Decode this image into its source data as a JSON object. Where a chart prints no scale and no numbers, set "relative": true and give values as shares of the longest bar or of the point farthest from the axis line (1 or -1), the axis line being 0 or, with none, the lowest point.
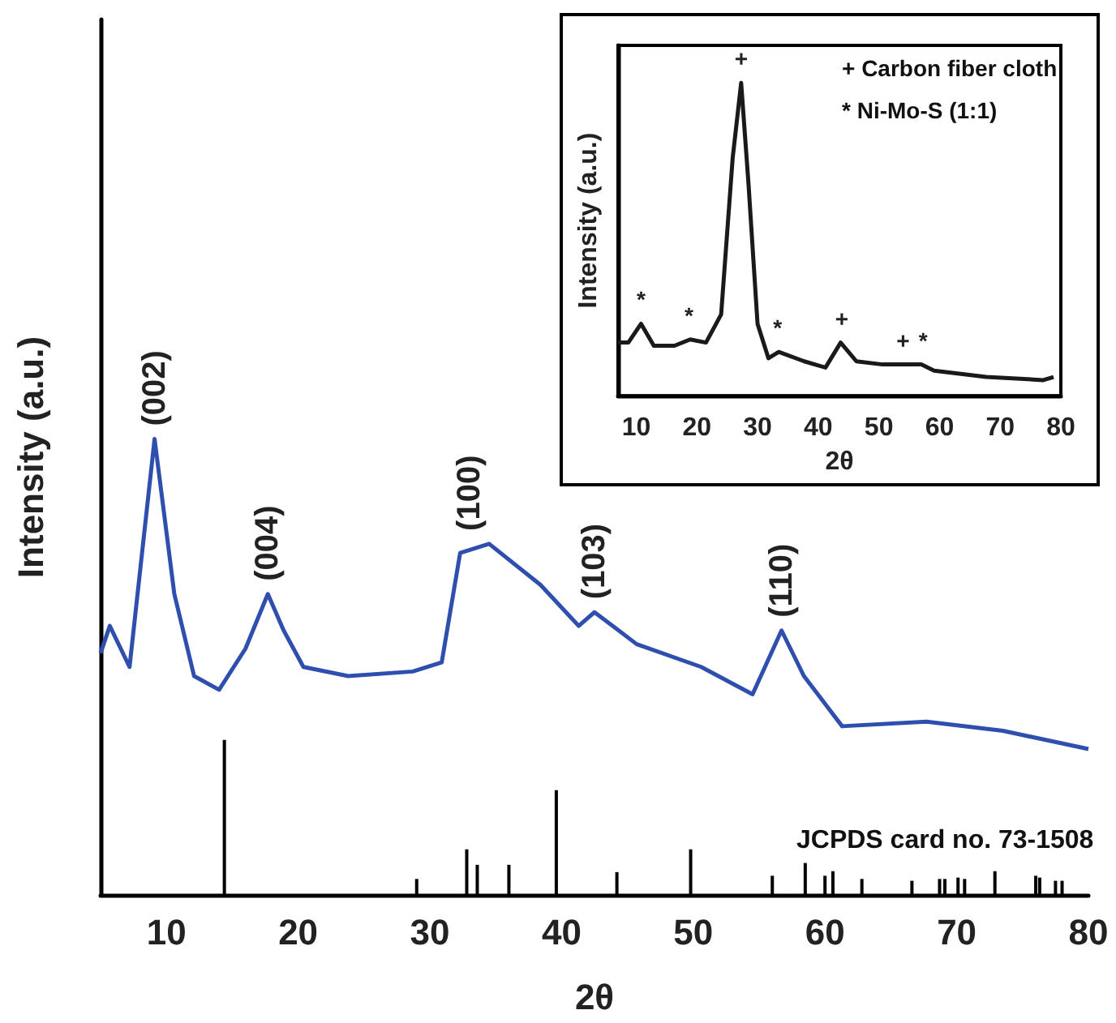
{
  "chart_data": [
    {
      "type": "line",
      "xlabel": "2θ",
      "ylabel": "Intensity (a.u.)",
      "relative": true,
      "xlim": [
        5,
        80
      ],
      "xticks": [
        10,
        20,
        30,
        40,
        50,
        60,
        70,
        80
      ],
      "series": [
        {
          "type": "line",
          "color": "#2f4fae",
          "x": [
            5,
            5.7,
            7.2,
            9.1,
            10.6,
            12.1,
            14,
            16,
            17.7,
            18.9,
            20.4,
            23.8,
            28.7,
            30.9,
            32.3,
            34.5,
            38.4,
            41.3,
            42.5,
            45.7,
            50.6,
            54.5,
            56.7,
            58.4,
            61.3,
            67.7,
            73.5,
            80
          ],
          "values": [
            0.53,
            0.59,
            0.5,
            1,
            0.66,
            0.48,
            0.45,
            0.54,
            0.66,
            0.58,
            0.5,
            0.48,
            0.49,
            0.51,
            0.75,
            0.77,
            0.68,
            0.59,
            0.62,
            0.55,
            0.5,
            0.44,
            0.58,
            0.48,
            0.37,
            0.38,
            0.36,
            0.32
          ]
        },
        {
          "type": "bar",
          "color": "#000000",
          "x": [
            14.4,
            29,
            32.8,
            33.6,
            36,
            39.6,
            44.2,
            49.8,
            56,
            58.5,
            60,
            60.6,
            62.8,
            66.6,
            68.7,
            69.1,
            70.1,
            70.6,
            72.9,
            76,
            76.3,
            77.5,
            78
          ],
          "values": [
            0.34,
            0.035,
            0.1,
            0.066,
            0.066,
            0.23,
            0.05,
            0.1,
            0.042,
            0.07,
            0.042,
            0.052,
            0.035,
            0.031,
            0.035,
            0.035,
            0.038,
            0.035,
            0.052,
            0.042,
            0.038,
            0.031,
            0.031
          ]
        }
      ],
      "annotations": [
        {
          "text": "(002)",
          "x": 9.1,
          "y": 1
        },
        {
          "text": "(004)",
          "x": 17.7,
          "y": 0.66
        },
        {
          "text": "(100)",
          "x": 33,
          "y": 0.77
        },
        {
          "text": "(103)",
          "x": 42.5,
          "y": 0.62
        },
        {
          "text": "(110)",
          "x": 56.7,
          "y": 0.58
        },
        "JCPDS card no. 73-1508"
      ]
    },
    {
      "type": "line",
      "xlabel": "2θ",
      "ylabel": "Intensity (a.u.)",
      "relative": true,
      "xlim": [
        7,
        80
      ],
      "xticks": [
        10,
        20,
        30,
        40,
        50,
        60,
        70,
        80
      ],
      "series": [
        {
          "color": "#1a1a1a",
          "x": [
            7,
            8.7,
            10.8,
            12.9,
            16.3,
            18.9,
            21.5,
            24,
            25.9,
            27.3,
            28.5,
            30,
            31.8,
            33.5,
            37.7,
            41.2,
            43.7,
            46.3,
            50.6,
            54,
            57,
            59.1,
            67.7,
            77.1,
            78.8
          ],
          "values": [
            0.17,
            0.17,
            0.23,
            0.16,
            0.16,
            0.18,
            0.17,
            0.26,
            0.76,
            1,
            0.68,
            0.23,
            0.12,
            0.14,
            0.11,
            0.09,
            0.17,
            0.11,
            0.1,
            0.1,
            0.1,
            0.08,
            0.06,
            0.05,
            0.06
          ]
        }
      ],
      "annotations": [
        "+ Carbon fiber cloth",
        "* Ni-Mo-S (1:1)",
        {
          "text": "*",
          "x": 10.8,
          "y": 0.23
        },
        {
          "text": "*",
          "x": 18.7,
          "y": 0.18
        },
        {
          "text": "+",
          "x": 27.3,
          "y": 1
        },
        {
          "text": "*",
          "x": 33.3,
          "y": 0.14
        },
        {
          "text": "+",
          "x": 43.9,
          "y": 0.17
        },
        {
          "text": "+",
          "x": 54,
          "y": 0.1
        },
        {
          "text": "*",
          "x": 57.3,
          "y": 0.1
        }
      ]
    }
  ]
}
